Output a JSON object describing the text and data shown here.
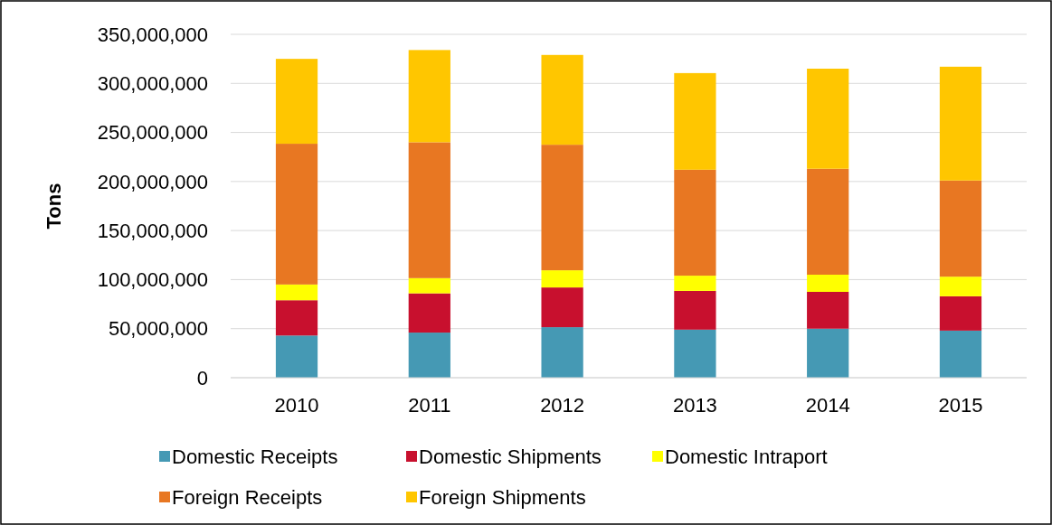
{
  "chart_data": {
    "type": "bar",
    "stacked": true,
    "ylabel": "Tons",
    "categories": [
      "2010",
      "2011",
      "2012",
      "2013",
      "2014",
      "2015"
    ],
    "series": [
      {
        "name": "Domestic Receipts",
        "color": "#4599b4",
        "values": [
          43000000,
          46000000,
          51500000,
          49000000,
          50000000,
          48000000
        ]
      },
      {
        "name": "Domestic Shipments",
        "color": "#c8102e",
        "values": [
          36000000,
          40000000,
          40500000,
          39500000,
          37500000,
          35000000
        ]
      },
      {
        "name": "Domestic Intraport",
        "color": "#ffff00",
        "values": [
          16000000,
          15500000,
          17500000,
          15500000,
          17500000,
          20000000
        ]
      },
      {
        "name": "Foreign Receipts",
        "color": "#e87722",
        "values": [
          143500000,
          138500000,
          128000000,
          108000000,
          108000000,
          98000000
        ]
      },
      {
        "name": "Foreign Shipments",
        "color": "#ffc600",
        "values": [
          86500000,
          94000000,
          91500000,
          98500000,
          102000000,
          116000000
        ]
      }
    ],
    "ylim": [
      0,
      350000000
    ],
    "yticks": [
      {
        "value": 0,
        "label": "0"
      },
      {
        "value": 50000000,
        "label": "50,000,000"
      },
      {
        "value": 100000000,
        "label": "100,000,000"
      },
      {
        "value": 150000000,
        "label": "150,000,000"
      },
      {
        "value": 200000000,
        "label": "200,000,000"
      },
      {
        "value": 250000000,
        "label": "250,000,000"
      },
      {
        "value": 300000000,
        "label": "300,000,000"
      },
      {
        "value": 350000000,
        "label": "350,000,000"
      }
    ],
    "grid": "y",
    "legend": "bottom"
  }
}
